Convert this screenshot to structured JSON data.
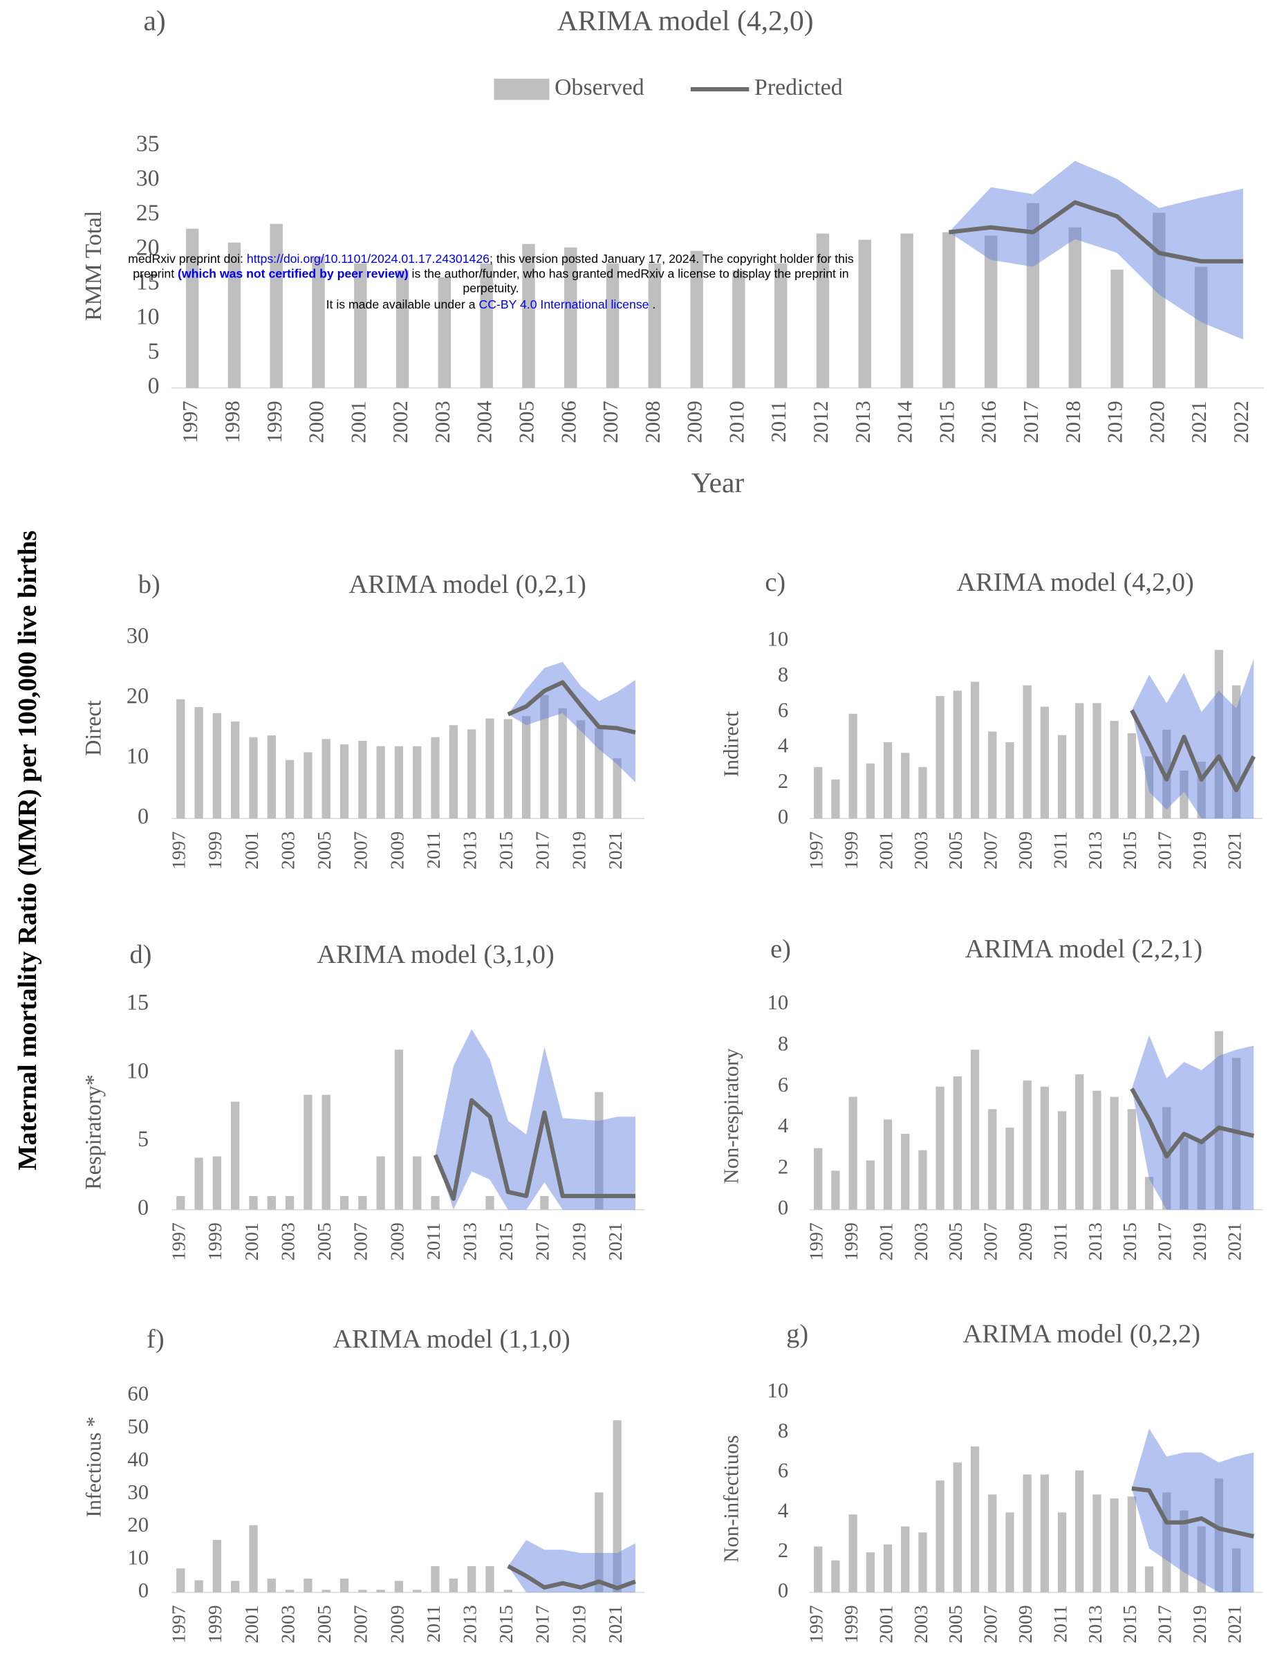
{
  "figure": {
    "y_label": "Maternal mortality Ratio (MMR) per 100,000 live births",
    "watermark": {
      "line1": [
        "medRxiv preprint doi: ",
        "https://doi.org/10.1101/2024.01.17.24301426",
        "; this version posted January 17, 2024. The copyright holder for this"
      ],
      "line2": [
        "preprint ",
        "(which was not certified by peer review)",
        " is the author/funder, who has granted medRxiv a license to display the preprint in"
      ],
      "line3": "perpetuity.",
      "line4": [
        "It is made available under a ",
        "CC-BY 4.0 International license",
        " ."
      ]
    }
  },
  "chart_data": [
    {
      "type": "bar",
      "panel_label": "a)",
      "title": "ARIMA model (4,2,0)",
      "y_label": "RMM Total",
      "x_label": "Year",
      "legend": "top",
      "categories": [
        "1997",
        "1998",
        "1999",
        "2000",
        "2001",
        "2002",
        "2003",
        "2004",
        "2005",
        "2006",
        "2007",
        "2008",
        "2009",
        "2010",
        "2011",
        "2012",
        "2013",
        "2014",
        "2015",
        "2016",
        "2017",
        "2018",
        "2019",
        "2020",
        "2021",
        "2022"
      ],
      "series": [
        {
          "name": "Observed",
          "color": "#bfbfbf",
          "values": [
            23,
            21,
            23.7,
            19,
            18,
            17,
            16,
            18,
            20.8,
            20.3,
            18,
            18,
            19.8,
            17,
            18,
            22.3,
            21.4,
            22.3,
            22.5,
            22,
            26.7,
            23.2,
            17.1,
            25.3,
            17.5,
            null
          ]
        },
        {
          "name": "Predicted",
          "type": "line",
          "color": "#6b6b6b",
          "values": [
            null,
            null,
            null,
            null,
            null,
            null,
            null,
            null,
            null,
            null,
            null,
            null,
            null,
            null,
            null,
            null,
            null,
            null,
            22.5,
            23.2,
            22.5,
            26.8,
            24.8,
            19.5,
            18.3,
            18.3
          ]
        }
      ],
      "interval": {
        "color": "#5b7be0",
        "upper": [
          null,
          null,
          null,
          null,
          null,
          null,
          null,
          null,
          null,
          null,
          null,
          null,
          null,
          null,
          null,
          null,
          null,
          null,
          22.5,
          29,
          28,
          32.8,
          30.2,
          26,
          27.5,
          28.8
        ],
        "lower": [
          null,
          null,
          null,
          null,
          null,
          null,
          null,
          null,
          null,
          null,
          null,
          null,
          null,
          null,
          null,
          null,
          null,
          null,
          22.5,
          18.5,
          17.5,
          21.5,
          19.5,
          13.5,
          9.5,
          7
        ]
      },
      "ylim": [
        0,
        35
      ],
      "yticks": [
        0,
        5,
        10,
        15,
        20,
        25,
        30,
        35
      ]
    },
    {
      "type": "bar",
      "panel_label": "b)",
      "title": "ARIMA model (0,2,1)",
      "y_label": "Direct",
      "categories": [
        "1997",
        null,
        "1999",
        null,
        "2001",
        null,
        "2003",
        null,
        "2005",
        null,
        "2007",
        null,
        "2009",
        null,
        "2011",
        null,
        "2013",
        null,
        "2015",
        null,
        "2017",
        null,
        "2019",
        null,
        "2021",
        null
      ],
      "series": [
        {
          "color": "#bfbfbf",
          "values": [
            19.8,
            18.5,
            17.5,
            16.1,
            13.5,
            13.8,
            9.7,
            11,
            13.2,
            12.3,
            12.9,
            12,
            12,
            12,
            13.5,
            15.5,
            14.8,
            16.6,
            16.5,
            17,
            20.5,
            18.3,
            16.3,
            15,
            10,
            null
          ]
        },
        {
          "type": "line",
          "color": "#6b6b6b",
          "values": [
            null,
            null,
            null,
            null,
            null,
            null,
            null,
            null,
            null,
            null,
            null,
            null,
            null,
            null,
            null,
            null,
            null,
            null,
            17.3,
            18.6,
            21.2,
            22.6,
            18.8,
            15.2,
            15,
            14.3
          ]
        }
      ],
      "interval": {
        "color": "#5b7be0",
        "upper": [
          null,
          null,
          null,
          null,
          null,
          null,
          null,
          null,
          null,
          null,
          null,
          null,
          null,
          null,
          null,
          null,
          null,
          null,
          17.3,
          21.5,
          25,
          26,
          22,
          19.5,
          21,
          23
        ],
        "lower": [
          null,
          null,
          null,
          null,
          null,
          null,
          null,
          null,
          null,
          null,
          null,
          null,
          null,
          null,
          null,
          null,
          null,
          null,
          17.3,
          15.5,
          16.5,
          17.5,
          14.5,
          11.5,
          9,
          6
        ]
      },
      "ylim": [
        0,
        30
      ],
      "yticks": [
        0,
        10,
        20,
        30
      ]
    },
    {
      "type": "bar",
      "panel_label": "c)",
      "title": "ARIMA model (4,2,0)",
      "y_label": "Indirect",
      "categories": [
        "1997",
        null,
        "1999",
        null,
        "2001",
        null,
        "2003",
        null,
        "2005",
        null,
        "2007",
        null,
        "2009",
        null,
        "2011",
        null,
        "2013",
        null,
        "2015",
        null,
        "2017",
        null,
        "2019",
        null,
        "2021",
        null
      ],
      "series": [
        {
          "color": "#bfbfbf",
          "values": [
            2.9,
            2.2,
            5.9,
            3.1,
            4.3,
            3.7,
            2.9,
            6.9,
            7.2,
            7.7,
            4.9,
            4.3,
            7.5,
            6.3,
            4.7,
            6.5,
            6.5,
            5.5,
            4.8,
            3.5,
            5,
            2.7,
            3.2,
            9.5,
            7.5,
            null
          ]
        },
        {
          "type": "line",
          "color": "#6b6b6b",
          "values": [
            null,
            null,
            null,
            null,
            null,
            null,
            null,
            null,
            null,
            null,
            null,
            null,
            null,
            null,
            null,
            null,
            null,
            null,
            6.1,
            4.2,
            2.2,
            4.6,
            2.2,
            3.5,
            1.6,
            3.5
          ]
        }
      ],
      "interval": {
        "color": "#5b7be0",
        "upper": [
          null,
          null,
          null,
          null,
          null,
          null,
          null,
          null,
          null,
          null,
          null,
          null,
          null,
          null,
          null,
          null,
          null,
          null,
          6.1,
          8.1,
          6.5,
          8.2,
          6,
          7.2,
          6.2,
          9
        ],
        "lower": [
          null,
          null,
          null,
          null,
          null,
          null,
          null,
          null,
          null,
          null,
          null,
          null,
          null,
          null,
          null,
          null,
          null,
          null,
          6.1,
          1.5,
          0.5,
          1.5,
          0,
          0,
          0,
          0
        ]
      },
      "ylim": [
        0,
        10
      ],
      "yticks": [
        0,
        2,
        4,
        6,
        8,
        10
      ]
    },
    {
      "type": "bar",
      "panel_label": "d)",
      "title": "ARIMA model (3,1,0)",
      "y_label": "Respiratory*",
      "categories": [
        "1997",
        null,
        "1999",
        null,
        "2001",
        null,
        "2003",
        null,
        "2005",
        null,
        "2007",
        null,
        "2009",
        null,
        "2011",
        null,
        "2013",
        null,
        "2015",
        null,
        "2017",
        null,
        "2019",
        null,
        "2021",
        null
      ],
      "series": [
        {
          "color": "#bfbfbf",
          "values": [
            1,
            3.8,
            3.9,
            7.9,
            1,
            1,
            1,
            8.4,
            8.4,
            1,
            1,
            3.9,
            11.7,
            3.9,
            1,
            null,
            null,
            1,
            null,
            null,
            1,
            null,
            null,
            8.6,
            null,
            null
          ]
        },
        {
          "type": "line",
          "color": "#6b6b6b",
          "values": [
            null,
            null,
            null,
            null,
            null,
            null,
            null,
            null,
            null,
            null,
            null,
            null,
            null,
            null,
            4,
            0.8,
            8,
            6.8,
            1.3,
            1,
            7.1,
            1,
            1,
            1,
            1,
            1
          ]
        }
      ],
      "interval": {
        "color": "#5b7be0",
        "upper": [
          null,
          null,
          null,
          null,
          null,
          null,
          null,
          null,
          null,
          null,
          null,
          null,
          null,
          null,
          4,
          10.5,
          13.2,
          11,
          6.5,
          5.5,
          11.9,
          6.7,
          6.6,
          6.5,
          6.8,
          6.8
        ],
        "lower": [
          null,
          null,
          null,
          null,
          null,
          null,
          null,
          null,
          null,
          null,
          null,
          null,
          null,
          null,
          4,
          0,
          2.8,
          2.2,
          0,
          0,
          2,
          0,
          0,
          0,
          0,
          0
        ]
      },
      "ylim": [
        0,
        15
      ],
      "yticks": [
        0,
        5,
        10,
        15
      ]
    },
    {
      "type": "bar",
      "panel_label": "e)",
      "title": "ARIMA model (2,2,1)",
      "y_label": "Non-respiratory",
      "categories": [
        "1997",
        null,
        "1999",
        null,
        "2001",
        null,
        "2003",
        null,
        "2005",
        null,
        "2007",
        null,
        "2009",
        null,
        "2011",
        null,
        "2013",
        null,
        "2015",
        null,
        "2017",
        null,
        "2019",
        null,
        "2021",
        null
      ],
      "series": [
        {
          "color": "#bfbfbf",
          "values": [
            3,
            1.9,
            5.5,
            2.4,
            4.4,
            3.7,
            2.9,
            6,
            6.5,
            7.8,
            4.9,
            4,
            6.3,
            6,
            4.8,
            6.6,
            5.8,
            5.5,
            4.9,
            1.6,
            5,
            3.5,
            3.3,
            8.7,
            7.4,
            null
          ]
        },
        {
          "type": "line",
          "color": "#6b6b6b",
          "values": [
            null,
            null,
            null,
            null,
            null,
            null,
            null,
            null,
            null,
            null,
            null,
            null,
            null,
            null,
            null,
            null,
            null,
            null,
            5.9,
            4.4,
            2.6,
            3.7,
            3.3,
            4,
            3.8,
            3.6
          ]
        }
      ],
      "interval": {
        "color": "#5b7be0",
        "upper": [
          null,
          null,
          null,
          null,
          null,
          null,
          null,
          null,
          null,
          null,
          null,
          null,
          null,
          null,
          null,
          null,
          null,
          null,
          5.9,
          8.5,
          6.4,
          7.2,
          6.8,
          7.5,
          7.8,
          8
        ],
        "lower": [
          null,
          null,
          null,
          null,
          null,
          null,
          null,
          null,
          null,
          null,
          null,
          null,
          null,
          null,
          null,
          null,
          null,
          null,
          5.9,
          1.5,
          0,
          0,
          0,
          0,
          0,
          0
        ]
      },
      "ylim": [
        0,
        10
      ],
      "yticks": [
        0,
        2,
        4,
        6,
        8,
        10
      ]
    },
    {
      "type": "bar",
      "panel_label": "f)",
      "title": "ARIMA model (1,1,0)",
      "y_label": "Infectious *",
      "categories": [
        "1997",
        null,
        "1999",
        null,
        "2001",
        null,
        "2003",
        null,
        "2005",
        null,
        "2007",
        null,
        "2009",
        null,
        "2011",
        null,
        "2013",
        null,
        "2015",
        null,
        "2017",
        null,
        "2019",
        null,
        "2021",
        null
      ],
      "series": [
        {
          "color": "#bfbfbf",
          "values": [
            7.3,
            3.7,
            16,
            3.5,
            20.5,
            4.2,
            0.8,
            4.2,
            0.8,
            4.2,
            0.8,
            0.8,
            3.5,
            0.8,
            8,
            4.2,
            8,
            8,
            0.8,
            null,
            null,
            null,
            null,
            30.5,
            52.5,
            null
          ]
        },
        {
          "type": "line",
          "color": "#6b6b6b",
          "values": [
            null,
            null,
            null,
            null,
            null,
            null,
            null,
            null,
            null,
            null,
            null,
            null,
            null,
            null,
            null,
            null,
            null,
            null,
            8,
            5,
            1.5,
            2.8,
            1.5,
            3.3,
            1.3,
            3.3
          ]
        }
      ],
      "interval": {
        "color": "#5b7be0",
        "upper": [
          null,
          null,
          null,
          null,
          null,
          null,
          null,
          null,
          null,
          null,
          null,
          null,
          null,
          null,
          null,
          null,
          null,
          null,
          8,
          16,
          13,
          13,
          12,
          12,
          12,
          15
        ],
        "lower": [
          null,
          null,
          null,
          null,
          null,
          null,
          null,
          null,
          null,
          null,
          null,
          null,
          null,
          null,
          null,
          null,
          null,
          null,
          8,
          0,
          0,
          0,
          0,
          0,
          0,
          0
        ]
      },
      "ylim": [
        0,
        60
      ],
      "yticks": [
        0,
        10,
        20,
        30,
        40,
        50,
        60
      ]
    },
    {
      "type": "bar",
      "panel_label": "g)",
      "title": "ARIMA model (0,2,2)",
      "y_label": "Non-infectiuos",
      "categories": [
        "1997",
        null,
        "1999",
        null,
        "2001",
        null,
        "2003",
        null,
        "2005",
        null,
        "2007",
        null,
        "2009",
        null,
        "2011",
        null,
        "2013",
        null,
        "2015",
        null,
        "2017",
        null,
        "2019",
        null,
        "2021",
        null
      ],
      "series": [
        {
          "color": "#bfbfbf",
          "values": [
            2.3,
            1.6,
            3.9,
            2,
            2.4,
            3.3,
            3,
            5.6,
            6.5,
            7.3,
            4.9,
            4,
            5.9,
            5.9,
            4,
            6.1,
            4.9,
            4.7,
            4.8,
            1.3,
            5,
            4.1,
            3.3,
            5.7,
            2.2,
            null
          ]
        },
        {
          "type": "line",
          "color": "#6b6b6b",
          "values": [
            null,
            null,
            null,
            null,
            null,
            null,
            null,
            null,
            null,
            null,
            null,
            null,
            null,
            null,
            null,
            null,
            null,
            null,
            5.2,
            5.1,
            3.5,
            3.5,
            3.7,
            3.2,
            3,
            2.8
          ]
        }
      ],
      "interval": {
        "color": "#5b7be0",
        "upper": [
          null,
          null,
          null,
          null,
          null,
          null,
          null,
          null,
          null,
          null,
          null,
          null,
          null,
          null,
          null,
          null,
          null,
          null,
          5.2,
          8.2,
          6.8,
          7,
          7,
          6.5,
          6.8,
          7
        ],
        "lower": [
          null,
          null,
          null,
          null,
          null,
          null,
          null,
          null,
          null,
          null,
          null,
          null,
          null,
          null,
          null,
          null,
          null,
          null,
          5.2,
          2.2,
          1.6,
          1,
          0.5,
          0,
          0,
          0
        ]
      },
      "ylim": [
        0,
        10
      ],
      "yticks": [
        0,
        2,
        4,
        6,
        8,
        10
      ]
    }
  ]
}
